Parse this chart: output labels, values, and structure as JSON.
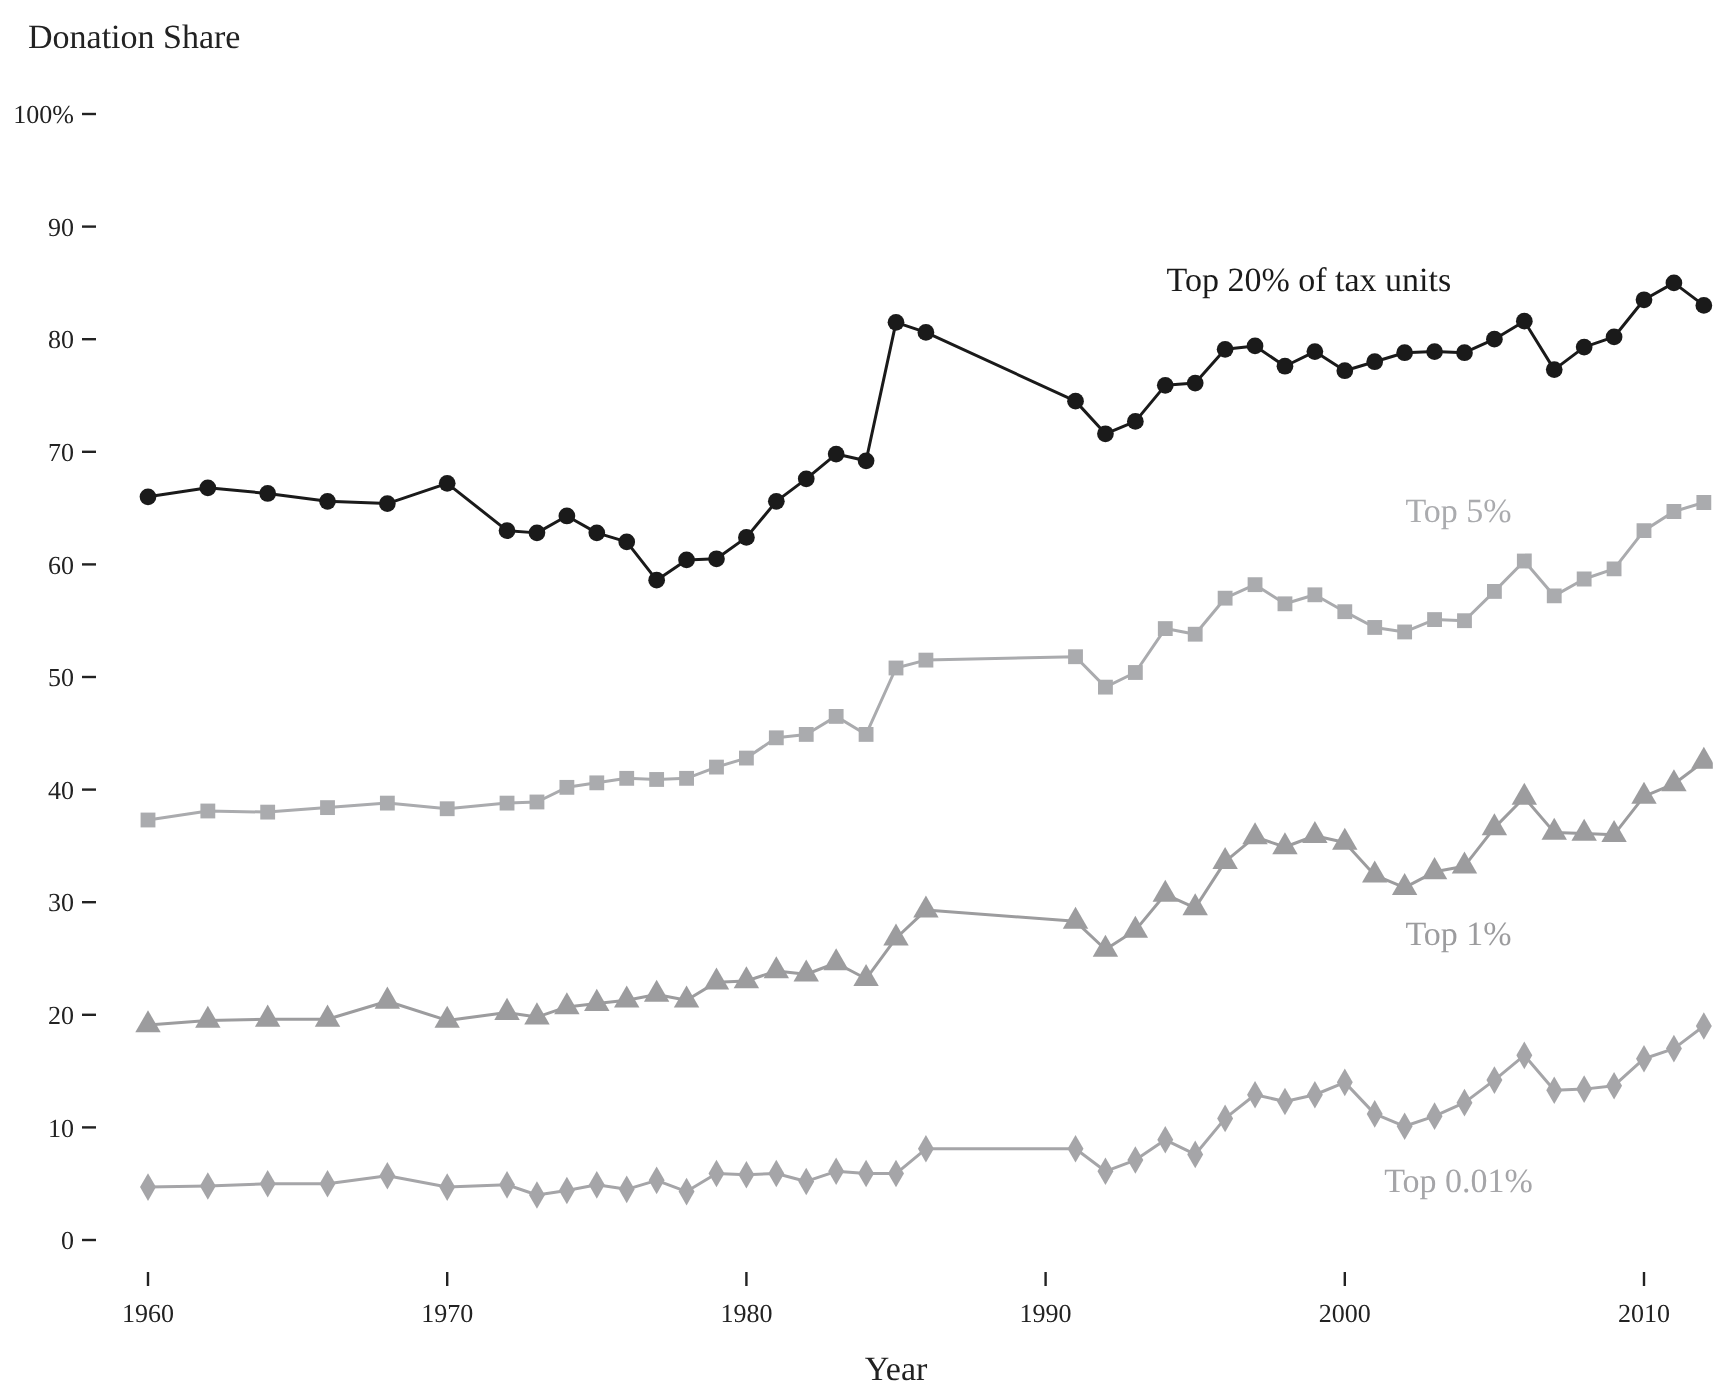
{
  "chart_data": {
    "type": "line",
    "ylabel": "Donation Share",
    "xlabel": "Year",
    "grid": false,
    "x": [
      1960,
      1962,
      1964,
      1966,
      1968,
      1970,
      1972,
      1973,
      1974,
      1975,
      1976,
      1977,
      1978,
      1979,
      1980,
      1981,
      1982,
      1983,
      1984,
      1985,
      1986,
      1991,
      1992,
      1993,
      1994,
      1995,
      1996,
      1997,
      1998,
      1999,
      2000,
      2001,
      2002,
      2003,
      2004,
      2005,
      2006,
      2007,
      2008,
      2009,
      2010,
      2011,
      2012
    ],
    "xlim": [
      1960,
      2012.3
    ],
    "xticks": [
      1960,
      1970,
      1980,
      1990,
      2000,
      2010
    ],
    "ylim": [
      0,
      100
    ],
    "yticks": [
      0,
      10,
      20,
      30,
      40,
      50,
      60,
      70,
      80,
      90,
      {
        "value": 100,
        "label": "100%"
      }
    ],
    "series": [
      {
        "name": "Top 20% of tax units",
        "color": "#1a1a1a",
        "marker": "circle",
        "values": [
          66.0,
          66.8,
          66.3,
          65.6,
          65.4,
          67.2,
          63.0,
          62.8,
          64.3,
          62.8,
          62.0,
          58.6,
          60.4,
          60.5,
          62.4,
          65.6,
          67.6,
          69.8,
          69.2,
          81.5,
          80.6,
          74.5,
          71.6,
          72.7,
          75.9,
          76.1,
          79.1,
          79.4,
          77.6,
          78.9,
          77.2,
          78.0,
          78.8,
          78.9,
          78.8,
          80.0,
          81.6,
          77.3,
          79.3,
          80.2,
          83.5,
          85.0,
          83.0
        ]
      },
      {
        "name": "Top 5%",
        "color": "#aaabae",
        "marker": "square",
        "values": [
          37.3,
          38.1,
          38.0,
          38.4,
          38.8,
          38.3,
          38.8,
          38.9,
          40.2,
          40.6,
          41.0,
          40.9,
          41.0,
          42.0,
          42.8,
          44.6,
          44.9,
          46.5,
          44.9,
          50.8,
          51.5,
          51.8,
          49.1,
          50.4,
          54.3,
          53.8,
          57.0,
          58.2,
          56.5,
          57.3,
          55.8,
          54.4,
          54.0,
          55.1,
          55.0,
          57.6,
          60.3,
          57.2,
          58.7,
          59.6,
          63.0,
          64.7,
          65.5
        ]
      },
      {
        "name": "Top 1%",
        "color": "#9c9c9e",
        "marker": "triangle",
        "values": [
          19.1,
          19.5,
          19.6,
          19.6,
          21.2,
          19.5,
          20.2,
          19.8,
          20.7,
          21.0,
          21.3,
          21.8,
          21.3,
          22.9,
          23.0,
          23.9,
          23.6,
          24.6,
          23.2,
          26.8,
          29.3,
          28.3,
          25.8,
          27.5,
          30.7,
          29.5,
          33.6,
          35.8,
          34.9,
          35.9,
          35.3,
          32.4,
          31.3,
          32.7,
          33.2,
          36.6,
          39.3,
          36.2,
          36.1,
          36.0,
          39.4,
          40.5,
          42.5
        ]
      },
      {
        "name": "Top 0.01%",
        "color": "#a5a5a8",
        "marker": "diamond",
        "values": [
          4.7,
          4.8,
          5.0,
          5.0,
          5.7,
          4.7,
          4.9,
          4.0,
          4.4,
          4.9,
          4.5,
          5.3,
          4.3,
          5.9,
          5.8,
          5.9,
          5.2,
          6.1,
          5.9,
          5.9,
          8.1,
          8.1,
          6.1,
          7.1,
          8.9,
          7.6,
          10.8,
          12.9,
          12.3,
          12.9,
          14.0,
          11.2,
          10.1,
          11.0,
          12.2,
          14.2,
          16.4,
          13.3,
          13.4,
          13.7,
          16.1,
          17.0,
          19.0
        ]
      }
    ]
  }
}
